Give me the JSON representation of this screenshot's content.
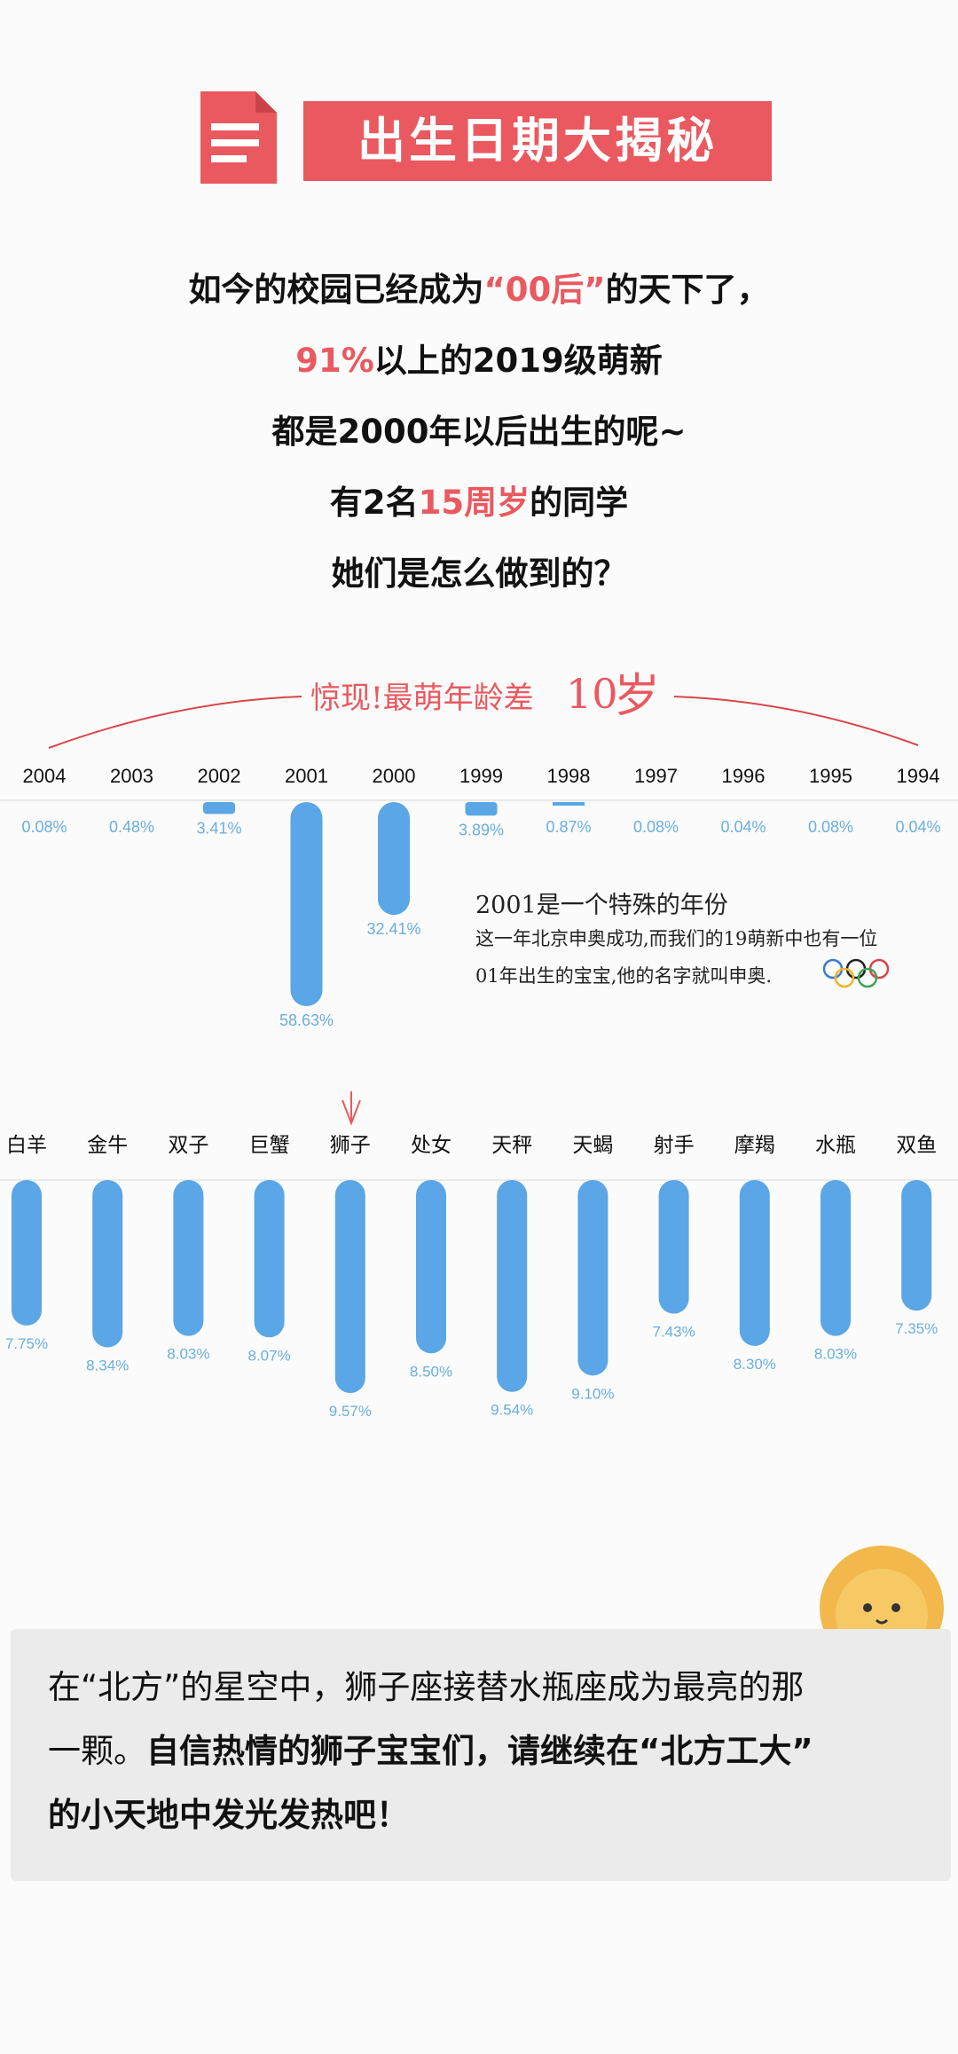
{
  "header": {
    "title": "出生日期大揭秘"
  },
  "intro": {
    "line1_pre": "如今的校园已经成为",
    "line1_hl": "“00后”",
    "line1_post": "的天下了，",
    "line2_hl": "91%",
    "line2_post": "以上的2019级萌新",
    "line3": "都是2000年以后出生的呢~",
    "line4_pre": "有2名",
    "line4_hl": "15周岁",
    "line4_post": "的同学",
    "line5": "她们是怎么做到的？"
  },
  "banner": {
    "text": "惊现!最萌年龄差",
    "num": "10",
    "unit": "岁"
  },
  "note": {
    "title": "2001是一个特殊的年份",
    "body1": "这一年北京申奥成功,而我们的19萌新中也有一位",
    "body2": "01年出生的宝宝,他的名字就叫申奥."
  },
  "footer": {
    "p1": "在“北方”的星空中，狮子座接替水瓶座成为最亮的那",
    "p2a": "一颗。",
    "p2b": "自信热情的狮子宝宝们，请继续在“北方工大”",
    "p3": "的小天地中发光发热吧！"
  },
  "colors": {
    "accent": "#e9595f",
    "bar": "#5aa6e6",
    "label": "#6aaee0"
  },
  "chart_data": [
    {
      "type": "bar",
      "categories": [
        "2004",
        "2003",
        "2002",
        "2001",
        "2000",
        "1999",
        "1998",
        "1997",
        "1996",
        "1995",
        "1994"
      ],
      "values": [
        0.08,
        0.48,
        3.41,
        58.63,
        32.41,
        3.89,
        0.87,
        0.08,
        0.04,
        0.08,
        0.04
      ],
      "labels": [
        "0.08%",
        "0.48%",
        "3.41%",
        "58.63%",
        "32.41%",
        "3.89%",
        "0.87%",
        "0.08%",
        "0.04%",
        "0.08%",
        "0.04%"
      ]
    },
    {
      "type": "bar",
      "categories": [
        "白羊",
        "金牛",
        "双子",
        "巨蟹",
        "狮子",
        "处女",
        "天秤",
        "天蝎",
        "射手",
        "摩羯",
        "水瓶",
        "双鱼"
      ],
      "values": [
        7.75,
        8.34,
        8.03,
        8.07,
        9.57,
        8.5,
        9.54,
        9.1,
        7.43,
        8.3,
        8.03,
        7.35
      ],
      "labels": [
        "7.75%",
        "8.34%",
        "8.03%",
        "8.07%",
        "9.57%",
        "8.50%",
        "9.54%",
        "9.10%",
        "7.43%",
        "8.30%",
        "8.03%",
        "7.35%"
      ]
    }
  ]
}
